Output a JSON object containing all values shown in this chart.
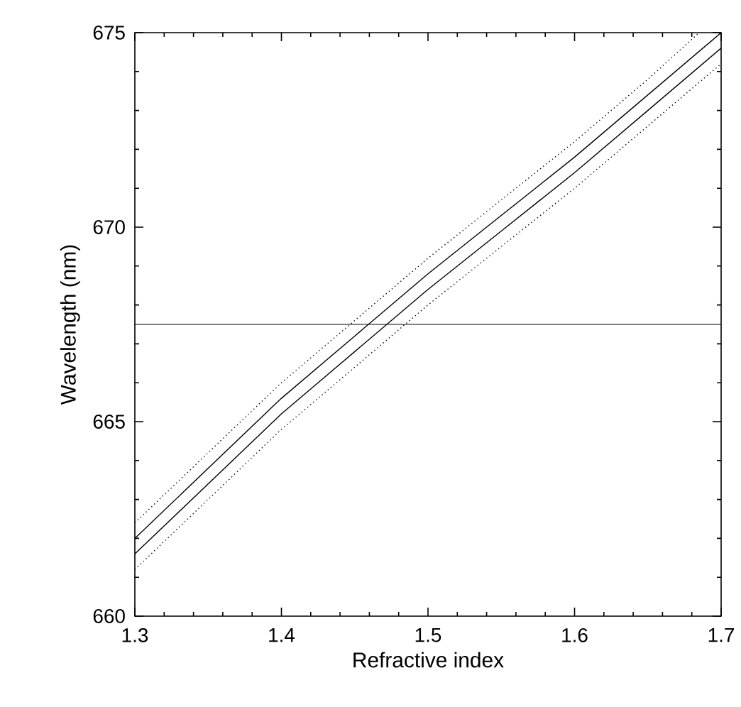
{
  "chart_data": {
    "type": "line",
    "xlabel": "Refractive index",
    "ylabel": "Wavelength (nm)",
    "x": [
      1.3,
      1.35,
      1.4,
      1.45,
      1.5,
      1.55,
      1.6,
      1.65,
      1.7
    ],
    "series": [
      {
        "color": "#000000",
        "line_style": "dotted",
        "x": [
          1.3,
          1.35,
          1.4,
          1.45,
          1.5,
          1.55,
          1.6,
          1.65,
          1.685
        ],
        "values": [
          662.4,
          664.2,
          666.0,
          667.6,
          669.2,
          670.7,
          672.2,
          673.8,
          675.0
        ]
      },
      {
        "color": "#000000",
        "line_style": "solid",
        "values": [
          662.0,
          663.8,
          665.6,
          667.2,
          668.8,
          670.3,
          671.8,
          673.4,
          675.0
        ]
      },
      {
        "color": "#000000",
        "line_style": "solid",
        "values": [
          661.6,
          663.4,
          665.2,
          666.8,
          668.4,
          669.9,
          671.4,
          673.0,
          674.6
        ]
      },
      {
        "color": "#000000",
        "line_style": "dotted",
        "values": [
          661.2,
          663.0,
          664.8,
          666.4,
          668.0,
          669.5,
          671.0,
          672.6,
          674.2
        ]
      }
    ],
    "ref_lines": [
      {
        "axis": "y",
        "value": 667.5,
        "color": "#000000"
      }
    ],
    "xlim": [
      1.3,
      1.7
    ],
    "ylim": [
      660,
      675
    ],
    "xticks": [
      1.3,
      1.4,
      1.5,
      1.6,
      1.7
    ],
    "yticks": [
      660,
      665,
      670,
      675
    ],
    "grid": false,
    "marker": "none"
  }
}
